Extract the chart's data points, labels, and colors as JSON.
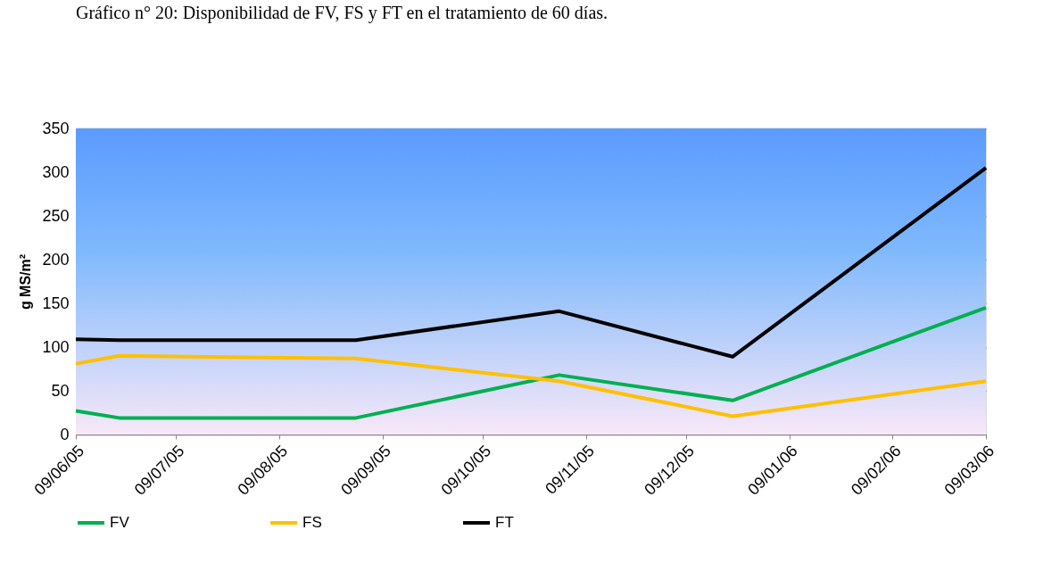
{
  "chart_data": {
    "type": "line",
    "title": "Gráfico n° 20: Disponibilidad de FV, FS y FT en el tratamiento de 60 días.",
    "ylabel": "g MS/m²",
    "x": [
      "2005-06-09",
      "2005-06-22",
      "2005-09-01",
      "2005-11-01",
      "2005-12-23",
      "2006-03-09"
    ],
    "series": [
      {
        "name": "FV",
        "color": "#00b050",
        "values": [
          27,
          19,
          19,
          68,
          39,
          145
        ]
      },
      {
        "name": "FS",
        "color": "#ffc000",
        "values": [
          81,
          90,
          87,
          61,
          21,
          61
        ]
      },
      {
        "name": "FT",
        "color": "#000000",
        "values": [
          109,
          108,
          108,
          141,
          89,
          305
        ]
      }
    ],
    "xlim": [
      "2005-06-09",
      "2006-03-09"
    ],
    "xticks": [
      {
        "value": "2005-06-09",
        "label": "09/06/05"
      },
      {
        "value": "2005-07-09",
        "label": "09/07/05"
      },
      {
        "value": "2005-08-09",
        "label": "09/08/05"
      },
      {
        "value": "2005-09-09",
        "label": "09/09/05"
      },
      {
        "value": "2005-10-09",
        "label": "09/10/05"
      },
      {
        "value": "2005-11-09",
        "label": "09/11/05"
      },
      {
        "value": "2005-12-09",
        "label": "09/12/05"
      },
      {
        "value": "2006-01-09",
        "label": "09/01/06"
      },
      {
        "value": "2006-02-09",
        "label": "09/02/06"
      },
      {
        "value": "2006-03-09",
        "label": "09/03/06"
      }
    ],
    "ylim": [
      0,
      350
    ],
    "yticks": [
      0,
      50,
      100,
      150,
      200,
      250,
      300,
      350
    ],
    "grid": "y",
    "legend": "bottom",
    "line_style": "solid",
    "marker": "none"
  }
}
